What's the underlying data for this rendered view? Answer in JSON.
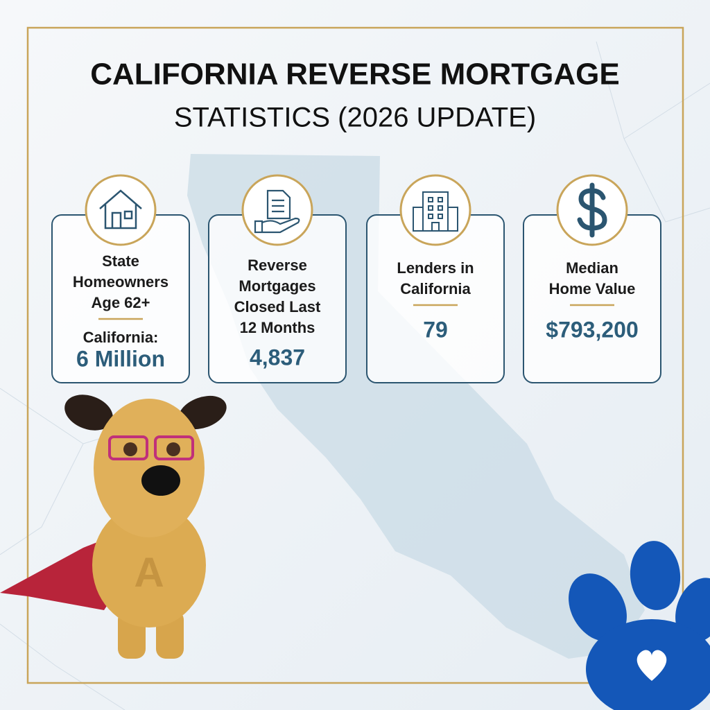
{
  "header": {
    "title": "CALIFORNIA REVERSE MORTGAGE",
    "subtitle": "STATISTICS (2026 UPDATE)"
  },
  "cards": [
    {
      "lines": [
        "State",
        "Homeowners",
        "Age 62+"
      ],
      "sublabel": "California:",
      "value": "6 Million"
    },
    {
      "lines": [
        "Reverse",
        "Mortgages",
        "Closed Last",
        "12 Months"
      ],
      "value": "4,837"
    },
    {
      "lines": [
        "Lenders in",
        "California"
      ],
      "value": "79"
    },
    {
      "lines": [
        "Median",
        "Home Value"
      ],
      "value": "$793,200"
    }
  ]
}
